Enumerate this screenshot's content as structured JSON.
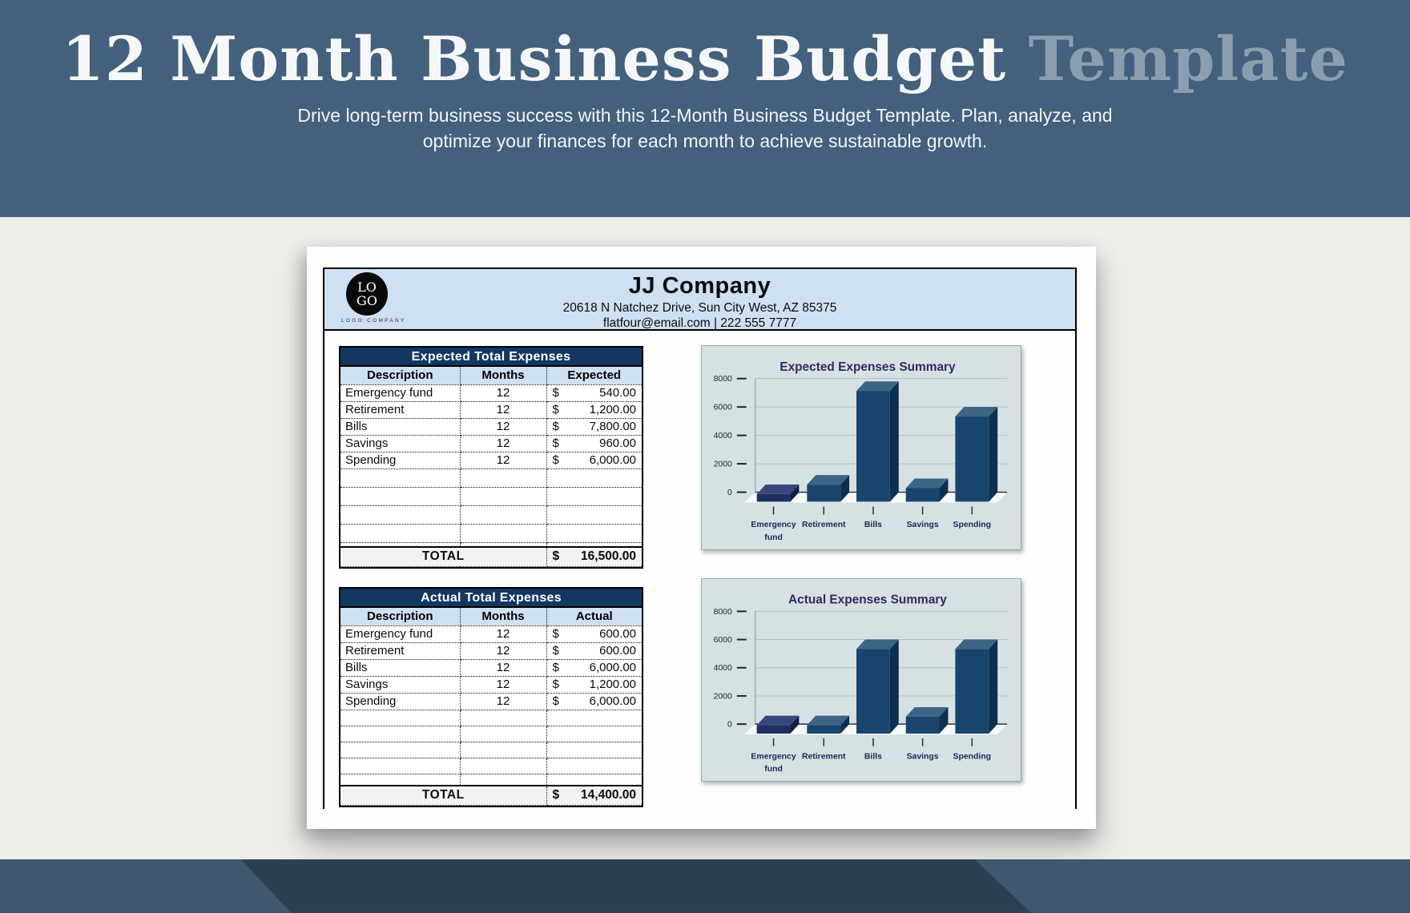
{
  "banner": {
    "title_main": "12 Month Business Budget",
    "title_accent": "Template",
    "subtitle_line1": "Drive long-term business success with this 12-Month Business Budget Template. Plan, analyze, and",
    "subtitle_line2": "optimize your finances for each month to achieve sustainable growth."
  },
  "document": {
    "logo": {
      "line1": "LO",
      "line2": "GO",
      "caption": "LOGO COMPANY"
    },
    "company": {
      "name": "JJ Company",
      "address": "20618 N Natchez Drive, Sun City West, AZ 85375",
      "contact": "flatfour@email.com | 222 555 7777"
    }
  },
  "tables": {
    "currency": "$",
    "expected": {
      "title": "Expected Total Expenses",
      "columns": [
        "Description",
        "Months",
        "Expected"
      ],
      "rows": [
        [
          "Emergency fund",
          "12",
          "540.00"
        ],
        [
          "Retirement",
          "12",
          "1,200.00"
        ],
        [
          "Bills",
          "12",
          "7,800.00"
        ],
        [
          "Savings",
          "12",
          "960.00"
        ],
        [
          "Spending",
          "12",
          "6,000.00"
        ]
      ],
      "empty_rows": 4,
      "total_label": "TOTAL",
      "total_value": "16,500.00"
    },
    "actual": {
      "title": "Actual Total Expenses",
      "columns": [
        "Description",
        "Months",
        "Actual"
      ],
      "rows": [
        [
          "Emergency fund",
          "12",
          "600.00"
        ],
        [
          "Retirement",
          "12",
          "600.00"
        ],
        [
          "Bills",
          "12",
          "6,000.00"
        ],
        [
          "Savings",
          "12",
          "1,200.00"
        ],
        [
          "Spending",
          "12",
          "6,000.00"
        ]
      ],
      "empty_rows": 4,
      "total_label": "TOTAL",
      "total_value": "14,400.00"
    }
  },
  "chart_data": [
    {
      "type": "bar",
      "variant": "3d",
      "title": "Expected Expenses Summary",
      "categories": [
        "Emergency fund",
        "Retirement",
        "Bills",
        "Savings",
        "Spending"
      ],
      "category_lines": [
        [
          "Emergency",
          "fund"
        ],
        [
          "Retirement"
        ],
        [
          "Bills"
        ],
        [
          "Savings"
        ],
        [
          "Spending"
        ]
      ],
      "values": [
        540,
        1200,
        7800,
        960,
        6000
      ],
      "ylim": [
        0,
        8000
      ],
      "yticks": [
        0,
        2000,
        4000,
        6000,
        8000
      ],
      "grid": true,
      "legend": false
    },
    {
      "type": "bar",
      "variant": "3d",
      "title": "Actual Expenses Summary",
      "categories": [
        "Emergency fund",
        "Retirement",
        "Bills",
        "Savings",
        "Spending"
      ],
      "category_lines": [
        [
          "Emergency",
          "fund"
        ],
        [
          "Retirement"
        ],
        [
          "Bills"
        ],
        [
          "Savings"
        ],
        [
          "Spending"
        ]
      ],
      "values": [
        600,
        600,
        6000,
        1200,
        6000
      ],
      "ylim": [
        0,
        8000
      ],
      "yticks": [
        0,
        2000,
        4000,
        6000,
        8000
      ],
      "grid": true,
      "legend": false
    }
  ],
  "colors": {
    "banner_bg": "#43607C",
    "banner_accent": "#8B9EB0",
    "bottom_band_bg": "#3F5770",
    "page_bg": "#FEFEFE",
    "stage_bg": "#EFEEEA",
    "company_band_bg": "#CFE0F2",
    "table_title_bg": "#123760",
    "table_header_bg": "#CFE0F2",
    "total_row_bg": "#F2F2F2",
    "chart_panel_bg": "#D6E1E4",
    "chart_title": "#2F2A64",
    "chart_gridline": "#B2BFC4",
    "chart_axis_label": "#232557",
    "bar_first": {
      "front": "#1E2F62",
      "top": "#38487C",
      "side": "#131E45"
    },
    "bar_rest": {
      "front": "#17456B",
      "top": "#3C6485",
      "side": "#0D2F4F"
    }
  }
}
